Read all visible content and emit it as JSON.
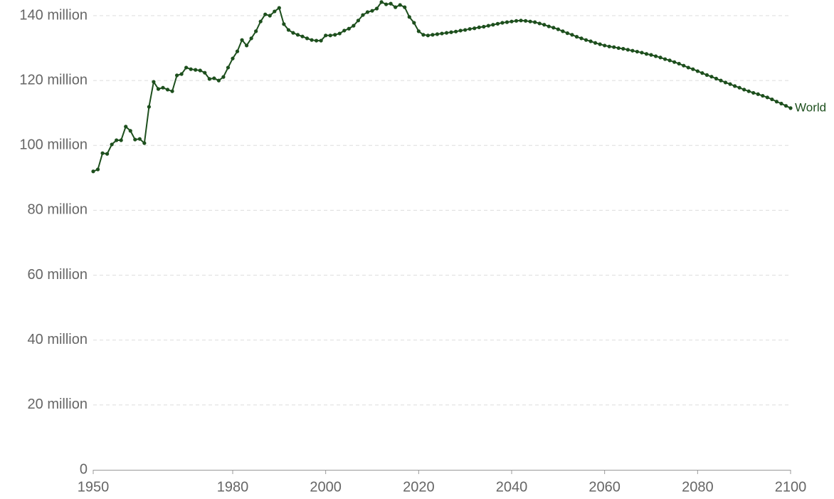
{
  "chart_data": {
    "type": "line",
    "x": [
      1950,
      1951,
      1952,
      1953,
      1954,
      1955,
      1956,
      1957,
      1958,
      1959,
      1960,
      1961,
      1962,
      1963,
      1964,
      1965,
      1966,
      1967,
      1968,
      1969,
      1970,
      1971,
      1972,
      1973,
      1974,
      1975,
      1976,
      1977,
      1978,
      1979,
      1980,
      1981,
      1982,
      1983,
      1984,
      1985,
      1986,
      1987,
      1988,
      1989,
      1990,
      1991,
      1992,
      1993,
      1994,
      1995,
      1996,
      1997,
      1998,
      1999,
      2000,
      2001,
      2002,
      2003,
      2004,
      2005,
      2006,
      2007,
      2008,
      2009,
      2010,
      2011,
      2012,
      2013,
      2014,
      2015,
      2016,
      2017,
      2018,
      2019,
      2020,
      2021,
      2022,
      2023,
      2024,
      2025,
      2026,
      2027,
      2028,
      2029,
      2030,
      2031,
      2032,
      2033,
      2034,
      2035,
      2036,
      2037,
      2038,
      2039,
      2040,
      2041,
      2042,
      2043,
      2044,
      2045,
      2046,
      2047,
      2048,
      2049,
      2050,
      2051,
      2052,
      2053,
      2054,
      2055,
      2056,
      2057,
      2058,
      2059,
      2060,
      2061,
      2062,
      2063,
      2064,
      2065,
      2066,
      2067,
      2068,
      2069,
      2070,
      2071,
      2072,
      2073,
      2074,
      2075,
      2076,
      2077,
      2078,
      2079,
      2080,
      2081,
      2082,
      2083,
      2084,
      2085,
      2086,
      2087,
      2088,
      2089,
      2090,
      2091,
      2092,
      2093,
      2094,
      2095,
      2096,
      2097,
      2098,
      2099,
      2100
    ],
    "series": [
      {
        "name": "World",
        "color": "#1d4f1d",
        "values": [
          92000000,
          92600000,
          97600000,
          97400000,
          100300000,
          101600000,
          101600000,
          105800000,
          104500000,
          101800000,
          102000000,
          100700000,
          111900000,
          119600000,
          117400000,
          117800000,
          117200000,
          116700000,
          121600000,
          122000000,
          124000000,
          123500000,
          123300000,
          123100000,
          122400000,
          120500000,
          120700000,
          120000000,
          121100000,
          124000000,
          126800000,
          129000000,
          132500000,
          130800000,
          133000000,
          135200000,
          138200000,
          140400000,
          140000000,
          141300000,
          142400000,
          137400000,
          135600000,
          134700000,
          134100000,
          133600000,
          133000000,
          132500000,
          132300000,
          132300000,
          133900000,
          133900000,
          134100000,
          134500000,
          135400000,
          136000000,
          136900000,
          138500000,
          140200000,
          141100000,
          141500000,
          142200000,
          144200000,
          143500000,
          143700000,
          142600000,
          143300000,
          142600000,
          139600000,
          137800000,
          135200000,
          134100000,
          133900000,
          134100000,
          134300000,
          134500000,
          134700000,
          134900000,
          135100000,
          135400000,
          135600000,
          135900000,
          136100000,
          136400000,
          136600000,
          136900000,
          137200000,
          137500000,
          137800000,
          138000000,
          138200000,
          138400000,
          138500000,
          138400000,
          138200000,
          138000000,
          137600000,
          137200000,
          136700000,
          136300000,
          135800000,
          135200000,
          134600000,
          134100000,
          133500000,
          133000000,
          132500000,
          132100000,
          131600000,
          131200000,
          130800000,
          130500000,
          130300000,
          130000000,
          129800000,
          129500000,
          129200000,
          128900000,
          128600000,
          128200000,
          127900000,
          127500000,
          127100000,
          126600000,
          126200000,
          125700000,
          125200000,
          124600000,
          124000000,
          123500000,
          122900000,
          122300000,
          121700000,
          121200000,
          120600000,
          120000000,
          119400000,
          118900000,
          118300000,
          117800000,
          117200000,
          116700000,
          116200000,
          115800000,
          115300000,
          114800000,
          114200000,
          113500000,
          112900000,
          112200000,
          111500000
        ]
      }
    ],
    "xlim": [
      1950,
      2100
    ],
    "xticks": [
      1950,
      1980,
      2000,
      2020,
      2040,
      2060,
      2080,
      2100
    ],
    "ylim": [
      0,
      140000000
    ],
    "yticks": [
      0,
      {
        "value": 20000000,
        "label": "20 million"
      },
      {
        "value": 40000000,
        "label": "40 million"
      },
      {
        "value": 60000000,
        "label": "60 million"
      },
      {
        "value": 80000000,
        "label": "80 million"
      },
      {
        "value": 100000000,
        "label": "100 million"
      },
      {
        "value": 120000000,
        "label": "120 million"
      },
      {
        "value": 140000000,
        "label": "140 million"
      }
    ],
    "grid": true
  }
}
